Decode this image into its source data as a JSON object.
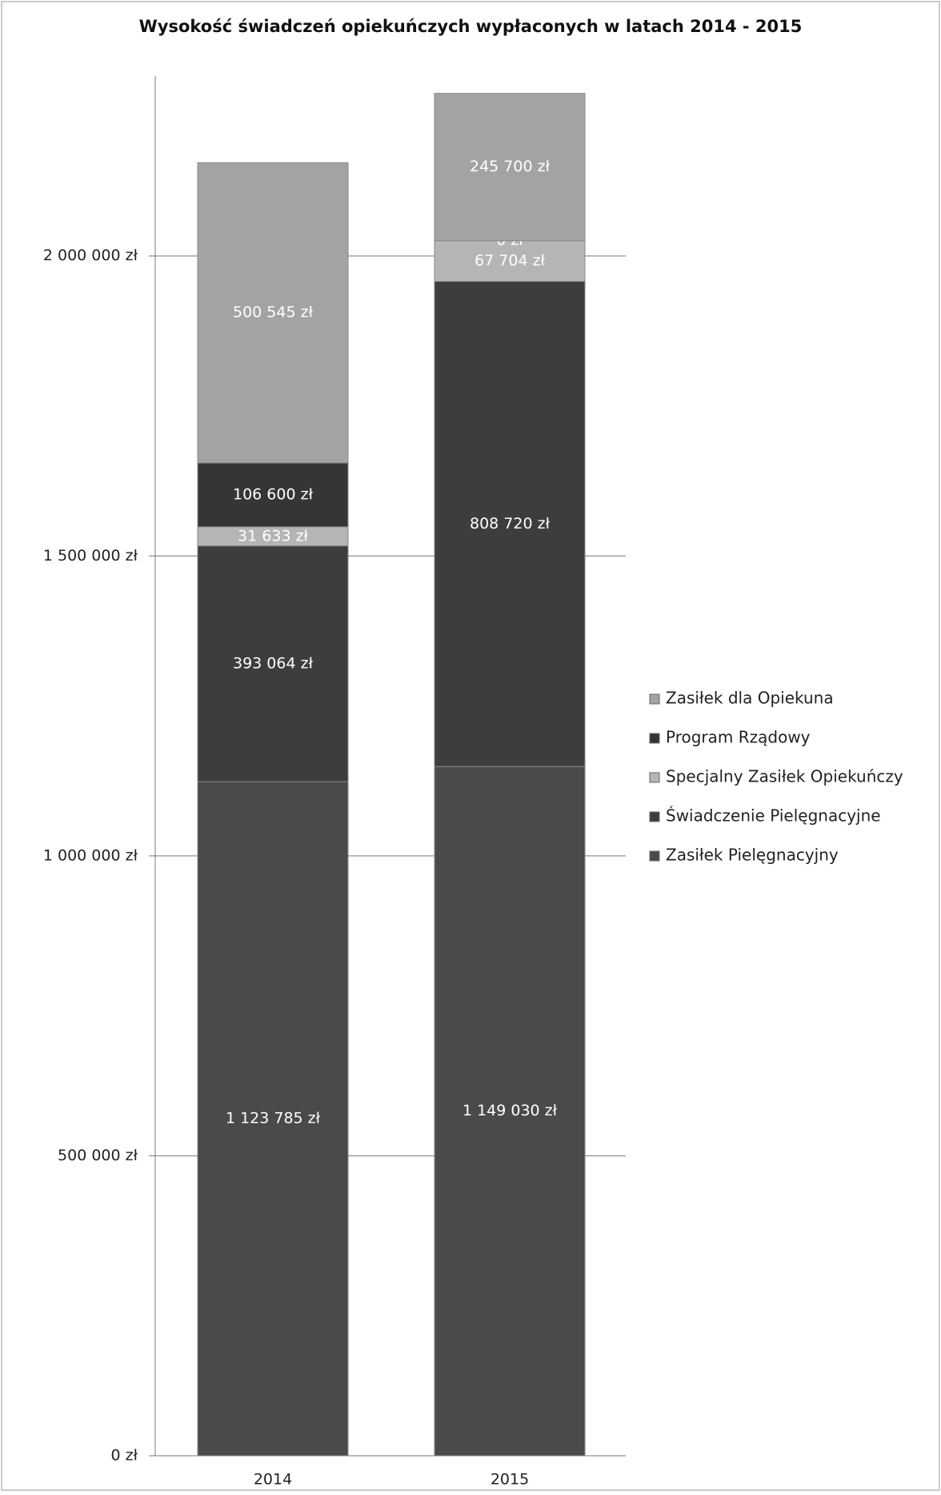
{
  "chart_data": {
    "type": "stacked_bar",
    "title": "Wysokość świadczeń opiekuńczych wypłaconych w latach 2014 - 2015",
    "categories": [
      "2014",
      "2015"
    ],
    "series": [
      {
        "name": "Zasiłek Pielęgnacyjny",
        "color": "#4a4a4a",
        "values": [
          1123785,
          1149030
        ],
        "value_labels": [
          "1 123 785 zł",
          "1 149 030 zł"
        ]
      },
      {
        "name": "Świadczenie Pielęgnacyjne",
        "color": "#3d3d3d",
        "values": [
          393064,
          808720
        ],
        "value_labels": [
          "393 064 zł",
          "808 720 zł"
        ]
      },
      {
        "name": "Specjalny Zasiłek Opiekuńczy",
        "color": "#b5b5b5",
        "values": [
          31633,
          67704
        ],
        "value_labels": [
          "31 633 zł",
          "67 704 zł"
        ]
      },
      {
        "name": "Program Rządowy",
        "color": "#353535",
        "values": [
          106600,
          0
        ],
        "value_labels": [
          "106 600 zł",
          "0 zł"
        ]
      },
      {
        "name": "Zasiłek dla Opiekuna",
        "color": "#a3a3a3",
        "values": [
          500545,
          245700
        ],
        "value_labels": [
          "500 545 zł",
          "245 700 zł"
        ]
      }
    ],
    "ylim": [
      0,
      2300000
    ],
    "yticks": [
      {
        "value": 0,
        "label": "0 zł"
      },
      {
        "value": 500000,
        "label": "500 000 zł"
      },
      {
        "value": 1000000,
        "label": "1 000 000 zł"
      },
      {
        "value": 1500000,
        "label": "1 500 000 zł"
      },
      {
        "value": 2000000,
        "label": "2 000 000 zł"
      }
    ],
    "grid": true,
    "legend": "right"
  }
}
